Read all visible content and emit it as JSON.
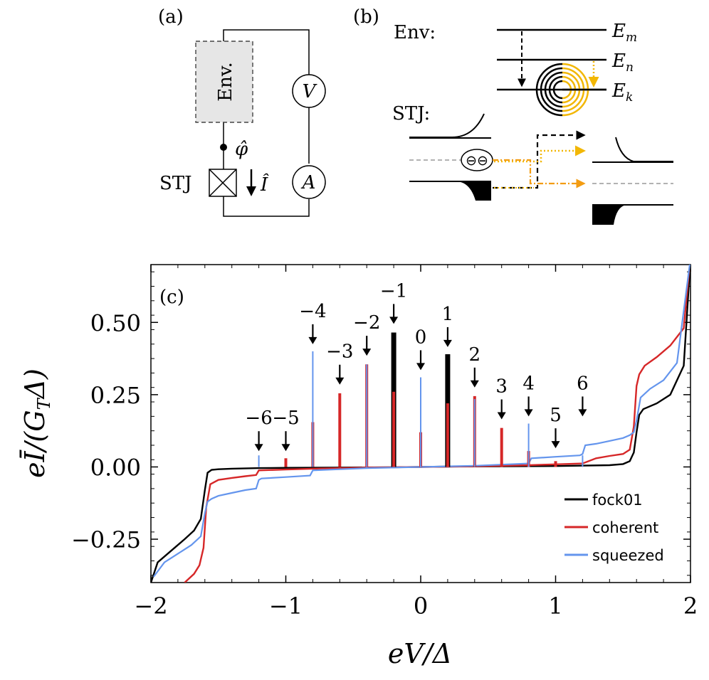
{
  "panel_a": {
    "label": "(a)",
    "env_label": "Env.",
    "stj_label": "STJ",
    "phi_label": "φ̂",
    "current_label": "Î",
    "voltmeter_label": "V",
    "ammeter_label": "A"
  },
  "panel_b": {
    "label": "(b)",
    "env_label": "Env:",
    "stj_label": "STJ:",
    "levels": [
      "E_m",
      "E_n",
      "E_k"
    ],
    "level_main": [
      "E",
      "E",
      "E"
    ],
    "level_sub": [
      "m",
      "n",
      "k"
    ],
    "pair_symbol": "⊖⊖",
    "electron_symbol": "⊖",
    "colors": {
      "environment_wave": "#F2B705",
      "orange": "#F39C12",
      "black": "#000000"
    }
  },
  "panel_c": {
    "label": "(c)",
    "xlabel": "eV/Δ",
    "ylabel": "eĪ/(G_TΔ)",
    "ylabel_parts": {
      "pre": "eĪ/(G",
      "sub": "T",
      "post": "Δ)"
    },
    "x_tick_labels": [
      "−2",
      "−1",
      "0",
      "1",
      "2"
    ],
    "y_tick_labels": [
      "0.50",
      "0.25",
      "0.00",
      "−0.25"
    ],
    "arrow_labels": [
      "−6",
      "−5",
      "−4",
      "−3",
      "−2",
      "−1",
      "0",
      "1",
      "2",
      "3",
      "4",
      "5",
      "6"
    ],
    "legend": [
      "fock01",
      "coherent",
      "squeezed"
    ]
  },
  "chart_data": {
    "type": "line",
    "title": "",
    "xlabel": "eV/Δ",
    "ylabel": "eĪ/(G_TΔ)",
    "xlim": [
      -2,
      2
    ],
    "ylim": [
      -0.4,
      0.7
    ],
    "x_ticks": [
      -2,
      -1,
      0,
      1,
      2
    ],
    "y_ticks": [
      0.5,
      0.25,
      0.0,
      -0.25
    ],
    "legend_position": "lower-right",
    "grid": false,
    "series": [
      {
        "name": "fock01",
        "color": "#000000",
        "x": [
          -2.0,
          -1.95,
          -1.85,
          -1.75,
          -1.68,
          -1.63,
          -1.6,
          -1.58,
          -1.55,
          -1.5,
          -1.4,
          -1.2,
          -1.0,
          -0.6,
          -0.2,
          0.2,
          0.6,
          1.0,
          1.4,
          1.5,
          1.55,
          1.58,
          1.6,
          1.62,
          1.65,
          1.75,
          1.85,
          1.95,
          2.0
        ],
        "y": [
          -0.4,
          -0.33,
          -0.29,
          -0.25,
          -0.22,
          -0.18,
          -0.08,
          -0.02,
          -0.01,
          -0.008,
          -0.006,
          -0.004,
          -0.003,
          -0.002,
          -0.001,
          0.001,
          0.002,
          0.003,
          0.006,
          0.01,
          0.02,
          0.05,
          0.12,
          0.18,
          0.2,
          0.22,
          0.25,
          0.35,
          0.72
        ],
        "spikes": [
          {
            "x": -0.2,
            "y": 0.465
          },
          {
            "x": 0.2,
            "y": 0.39
          }
        ]
      },
      {
        "name": "coherent",
        "color": "#D62728",
        "x": [
          -1.75,
          -1.68,
          -1.64,
          -1.61,
          -1.59,
          -1.56,
          -1.5,
          -1.4,
          -1.3,
          -1.22,
          -1.2,
          -1.0,
          -0.8,
          -0.4,
          0.0,
          0.4,
          0.8,
          1.0,
          1.2,
          1.3,
          1.4,
          1.5,
          1.55,
          1.58,
          1.6,
          1.62,
          1.66,
          1.75,
          1.85,
          1.95,
          1.99
        ],
        "y": [
          -0.4,
          -0.37,
          -0.34,
          -0.28,
          -0.14,
          -0.06,
          -0.045,
          -0.038,
          -0.032,
          -0.028,
          -0.012,
          -0.009,
          -0.006,
          -0.002,
          0.0,
          0.002,
          0.006,
          0.009,
          0.012,
          0.03,
          0.038,
          0.045,
          0.06,
          0.14,
          0.28,
          0.32,
          0.35,
          0.38,
          0.42,
          0.48,
          0.68
        ],
        "spikes": [
          {
            "x": -1.0,
            "y": 0.03
          },
          {
            "x": -0.8,
            "y": 0.155
          },
          {
            "x": -0.6,
            "y": 0.255
          },
          {
            "x": -0.4,
            "y": 0.355
          },
          {
            "x": -0.2,
            "y": 0.26
          },
          {
            "x": 0.0,
            "y": 0.12
          },
          {
            "x": 0.2,
            "y": 0.22
          },
          {
            "x": 0.4,
            "y": 0.245
          },
          {
            "x": 0.6,
            "y": 0.135
          },
          {
            "x": 0.8,
            "y": 0.055
          },
          {
            "x": 1.0,
            "y": 0.02
          }
        ]
      },
      {
        "name": "squeezed",
        "color": "#6495ED",
        "x": [
          -1.98,
          -1.9,
          -1.8,
          -1.7,
          -1.63,
          -1.6,
          -1.58,
          -1.55,
          -1.5,
          -1.4,
          -1.3,
          -1.22,
          -1.2,
          -1.18,
          -1.0,
          -0.82,
          -0.8,
          -0.6,
          -0.4,
          0.0,
          0.4,
          0.6,
          0.8,
          0.82,
          1.0,
          1.18,
          1.2,
          1.22,
          1.3,
          1.4,
          1.5,
          1.55,
          1.58,
          1.6,
          1.63,
          1.7,
          1.8,
          1.9,
          2.0
        ],
        "y": [
          -0.38,
          -0.33,
          -0.3,
          -0.27,
          -0.24,
          -0.16,
          -0.12,
          -0.11,
          -0.1,
          -0.09,
          -0.08,
          -0.075,
          -0.045,
          -0.04,
          -0.035,
          -0.03,
          -0.012,
          -0.008,
          -0.004,
          0.0,
          0.004,
          0.008,
          0.012,
          0.03,
          0.035,
          0.04,
          0.045,
          0.075,
          0.08,
          0.09,
          0.1,
          0.11,
          0.12,
          0.16,
          0.24,
          0.27,
          0.3,
          0.36,
          0.72
        ],
        "spikes": [
          {
            "x": -1.2,
            "y": 0.04
          },
          {
            "x": -0.8,
            "y": 0.4
          },
          {
            "x": -0.4,
            "y": 0.355
          },
          {
            "x": 0.0,
            "y": 0.31
          },
          {
            "x": 0.4,
            "y": 0.235
          },
          {
            "x": 0.8,
            "y": 0.15
          },
          {
            "x": 1.2,
            "y": 0.04
          }
        ]
      }
    ],
    "annotations": [
      {
        "text": "−6",
        "x": -1.2,
        "arrow_tip_y": 0.04
      },
      {
        "text": "−5",
        "x": -1.0,
        "arrow_tip_y": 0.04
      },
      {
        "text": "−4",
        "x": -0.8,
        "arrow_tip_y": 0.41
      },
      {
        "text": "−3",
        "x": -0.6,
        "arrow_tip_y": 0.27
      },
      {
        "text": "−2",
        "x": -0.4,
        "arrow_tip_y": 0.37
      },
      {
        "text": "−1",
        "x": -0.2,
        "arrow_tip_y": 0.48
      },
      {
        "text": "0",
        "x": 0.0,
        "arrow_tip_y": 0.32
      },
      {
        "text": "1",
        "x": 0.2,
        "arrow_tip_y": 0.4
      },
      {
        "text": "2",
        "x": 0.4,
        "arrow_tip_y": 0.26
      },
      {
        "text": "3",
        "x": 0.6,
        "arrow_tip_y": 0.15
      },
      {
        "text": "4",
        "x": 0.8,
        "arrow_tip_y": 0.16
      },
      {
        "text": "5",
        "x": 1.0,
        "arrow_tip_y": 0.05
      },
      {
        "text": "6",
        "x": 1.2,
        "arrow_tip_y": 0.16
      }
    ]
  }
}
